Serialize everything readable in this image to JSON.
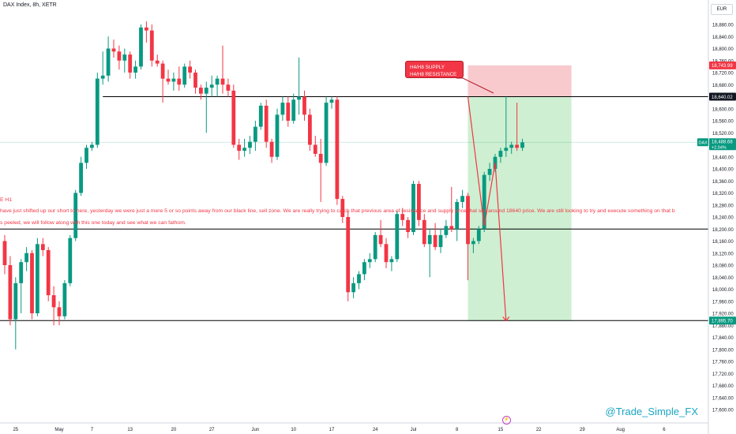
{
  "header": {
    "symbol": "DAX Index, 8h, XETR",
    "currency": "EUR"
  },
  "annotations": {
    "callout_line1": "H4/H8 SUPPLY",
    "callout_line2": "H4/H8 RESISTANCE",
    "note_timeframe": "E H1",
    "note_line1": "have just shifted up our short to here, yesterday we were just a mere 5 or so points away from our black line, sell zone. We are really trying to catch that previous area of resistance and supply price that sits around 18640 price. We are still looking to try and execute something on that b",
    "note_line2": "s peeled, we will follow along with this one today and see what we can fathom.",
    "watermark": "@Trade_Simple_FX"
  },
  "colors": {
    "up": "#089981",
    "down": "#f23645",
    "level_line": "#000000",
    "stop_zone": "#f7c1c6",
    "target_zone": "#c6ecc9",
    "projection": "#f23645",
    "current_price_line": "#089981"
  },
  "chart_data": {
    "type": "candlestick",
    "title": "DAX Index, 8h, XETR",
    "y_axis": {
      "min": 17560,
      "max": 18900,
      "tick_labels": [
        "18,880.00",
        "18,840.00",
        "18,800.00",
        "18,760.00",
        "18,720.00",
        "18,680.00",
        "18,640.00",
        "18,600.00",
        "18,560.00",
        "18,520.00",
        "18,480.00",
        "18,440.00",
        "18,400.00",
        "18,360.00",
        "18,320.00",
        "18,280.00",
        "18,240.00",
        "18,200.00",
        "18,160.00",
        "18,120.00",
        "18,080.00",
        "18,040.00",
        "18,000.00",
        "17,960.00",
        "17,920.00",
        "17,880.00",
        "17,840.00",
        "17,800.00",
        "17,760.00",
        "17,720.00",
        "17,680.00",
        "17,640.00",
        "17,600.00"
      ],
      "tick_values": [
        18880,
        18840,
        18800,
        18760,
        18720,
        18680,
        18640,
        18600,
        18560,
        18520,
        18480,
        18440,
        18400,
        18360,
        18320,
        18280,
        18240,
        18200,
        18160,
        18120,
        18080,
        18040,
        18000,
        17960,
        17920,
        17880,
        17840,
        17800,
        17760,
        17720,
        17680,
        17640,
        17600
      ]
    },
    "x_axis": {
      "tick_labels": [
        "25",
        "May",
        "7",
        "13",
        "20",
        "27",
        "Jun",
        "10",
        "17",
        "24",
        "Jul",
        "8",
        "15",
        "22",
        "29",
        "Aug",
        "6"
      ],
      "tick_bar_index": [
        2,
        10,
        16,
        23,
        31,
        38,
        46,
        53,
        60,
        68,
        75,
        83,
        91,
        98,
        106,
        113,
        121
      ]
    },
    "price_labels": {
      "stop": "18,743.99",
      "entry": "18,640.02",
      "current_symbol": "DAX",
      "current_price": "18,488.68",
      "current_change": "+2.04%",
      "target": "17,895.70"
    },
    "levels": {
      "entry": 18640.02,
      "stop": 18743.99,
      "target": 17895.7,
      "mid_support": 18200,
      "current": 18488.68
    },
    "position": {
      "start_bar": 85,
      "end_bar": 104
    },
    "projection_path": [
      {
        "bar": 85,
        "price": 18640
      },
      {
        "bar": 88,
        "price": 18210
      },
      {
        "bar": 90,
        "price": 18420
      },
      {
        "bar": 92,
        "price": 17895
      }
    ],
    "candles": [
      {
        "o": 18160,
        "h": 18180,
        "l": 18050,
        "c": 18080
      },
      {
        "o": 18080,
        "h": 18110,
        "l": 17880,
        "c": 17900
      },
      {
        "o": 17900,
        "h": 18040,
        "l": 17800,
        "c": 18020
      },
      {
        "o": 18020,
        "h": 18100,
        "l": 17920,
        "c": 18090
      },
      {
        "o": 18090,
        "h": 18140,
        "l": 18060,
        "c": 18120
      },
      {
        "o": 18120,
        "h": 18130,
        "l": 17900,
        "c": 17920
      },
      {
        "o": 17920,
        "h": 18170,
        "l": 17910,
        "c": 18150
      },
      {
        "o": 18150,
        "h": 18170,
        "l": 18110,
        "c": 18130
      },
      {
        "o": 18130,
        "h": 18140,
        "l": 17960,
        "c": 17980
      },
      {
        "o": 17980,
        "h": 18010,
        "l": 17880,
        "c": 17940
      },
      {
        "o": 17940,
        "h": 17960,
        "l": 17880,
        "c": 17910
      },
      {
        "o": 17910,
        "h": 18030,
        "l": 17900,
        "c": 18020
      },
      {
        "o": 18020,
        "h": 18180,
        "l": 18010,
        "c": 18170
      },
      {
        "o": 18170,
        "h": 18330,
        "l": 18160,
        "c": 18320
      },
      {
        "o": 18320,
        "h": 18440,
        "l": 18310,
        "c": 18420
      },
      {
        "o": 18420,
        "h": 18480,
        "l": 18400,
        "c": 18470
      },
      {
        "o": 18470,
        "h": 18490,
        "l": 18460,
        "c": 18480
      },
      {
        "o": 18480,
        "h": 18720,
        "l": 18470,
        "c": 18700
      },
      {
        "o": 18700,
        "h": 18790,
        "l": 18680,
        "c": 18710
      },
      {
        "o": 18710,
        "h": 18840,
        "l": 18690,
        "c": 18800
      },
      {
        "o": 18800,
        "h": 18830,
        "l": 18770,
        "c": 18790
      },
      {
        "o": 18790,
        "h": 18810,
        "l": 18730,
        "c": 18760
      },
      {
        "o": 18760,
        "h": 18800,
        "l": 18720,
        "c": 18780
      },
      {
        "o": 18780,
        "h": 18790,
        "l": 18700,
        "c": 18720
      },
      {
        "o": 18720,
        "h": 18760,
        "l": 18700,
        "c": 18740
      },
      {
        "o": 18740,
        "h": 18880,
        "l": 18730,
        "c": 18870
      },
      {
        "o": 18870,
        "h": 18890,
        "l": 18820,
        "c": 18860
      },
      {
        "o": 18860,
        "h": 18880,
        "l": 18740,
        "c": 18760
      },
      {
        "o": 18760,
        "h": 18780,
        "l": 18740,
        "c": 18750
      },
      {
        "o": 18750,
        "h": 18760,
        "l": 18620,
        "c": 18700
      },
      {
        "o": 18700,
        "h": 18730,
        "l": 18680,
        "c": 18690
      },
      {
        "o": 18690,
        "h": 18720,
        "l": 18660,
        "c": 18700
      },
      {
        "o": 18700,
        "h": 18740,
        "l": 18660,
        "c": 18680
      },
      {
        "o": 18680,
        "h": 18750,
        "l": 18670,
        "c": 18740
      },
      {
        "o": 18740,
        "h": 18760,
        "l": 18700,
        "c": 18720
      },
      {
        "o": 18720,
        "h": 18730,
        "l": 18650,
        "c": 18670
      },
      {
        "o": 18670,
        "h": 18680,
        "l": 18630,
        "c": 18650
      },
      {
        "o": 18650,
        "h": 18690,
        "l": 18520,
        "c": 18670
      },
      {
        "o": 18670,
        "h": 18710,
        "l": 18640,
        "c": 18680
      },
      {
        "o": 18680,
        "h": 18710,
        "l": 18640,
        "c": 18700
      },
      {
        "o": 18700,
        "h": 18810,
        "l": 18650,
        "c": 18680
      },
      {
        "o": 18680,
        "h": 18700,
        "l": 18640,
        "c": 18660
      },
      {
        "o": 18660,
        "h": 18680,
        "l": 18470,
        "c": 18480
      },
      {
        "o": 18480,
        "h": 18500,
        "l": 18430,
        "c": 18460
      },
      {
        "o": 18460,
        "h": 18500,
        "l": 18440,
        "c": 18470
      },
      {
        "o": 18470,
        "h": 18510,
        "l": 18450,
        "c": 18490
      },
      {
        "o": 18490,
        "h": 18560,
        "l": 18460,
        "c": 18540
      },
      {
        "o": 18540,
        "h": 18620,
        "l": 18530,
        "c": 18610
      },
      {
        "o": 18610,
        "h": 18630,
        "l": 18470,
        "c": 18490
      },
      {
        "o": 18490,
        "h": 18500,
        "l": 18420,
        "c": 18440
      },
      {
        "o": 18440,
        "h": 18600,
        "l": 18430,
        "c": 18580
      },
      {
        "o": 18580,
        "h": 18640,
        "l": 18560,
        "c": 18620
      },
      {
        "o": 18620,
        "h": 18640,
        "l": 18540,
        "c": 18560
      },
      {
        "o": 18560,
        "h": 18650,
        "l": 18550,
        "c": 18630
      },
      {
        "o": 18630,
        "h": 18770,
        "l": 18580,
        "c": 18640
      },
      {
        "o": 18640,
        "h": 18660,
        "l": 18560,
        "c": 18580
      },
      {
        "o": 18580,
        "h": 18600,
        "l": 18460,
        "c": 18480
      },
      {
        "o": 18480,
        "h": 18510,
        "l": 18440,
        "c": 18450
      },
      {
        "o": 18450,
        "h": 18500,
        "l": 18290,
        "c": 18420
      },
      {
        "o": 18420,
        "h": 18640,
        "l": 18410,
        "c": 18620
      },
      {
        "o": 18620,
        "h": 18640,
        "l": 18600,
        "c": 18630
      },
      {
        "o": 18630,
        "h": 18640,
        "l": 18280,
        "c": 18300
      },
      {
        "o": 18300,
        "h": 18310,
        "l": 18220,
        "c": 18240
      },
      {
        "o": 18240,
        "h": 18260,
        "l": 17960,
        "c": 17990
      },
      {
        "o": 17990,
        "h": 18040,
        "l": 17970,
        "c": 18020
      },
      {
        "o": 18020,
        "h": 18060,
        "l": 18000,
        "c": 18050
      },
      {
        "o": 18050,
        "h": 18100,
        "l": 18030,
        "c": 18090
      },
      {
        "o": 18090,
        "h": 18120,
        "l": 18070,
        "c": 18100
      },
      {
        "o": 18100,
        "h": 18190,
        "l": 18090,
        "c": 18180
      },
      {
        "o": 18180,
        "h": 18230,
        "l": 18140,
        "c": 18150
      },
      {
        "o": 18150,
        "h": 18170,
        "l": 18070,
        "c": 18090
      },
      {
        "o": 18090,
        "h": 18110,
        "l": 18060,
        "c": 18100
      },
      {
        "o": 18100,
        "h": 18260,
        "l": 18090,
        "c": 18250
      },
      {
        "o": 18250,
        "h": 18270,
        "l": 18210,
        "c": 18230
      },
      {
        "o": 18230,
        "h": 18240,
        "l": 18170,
        "c": 18190
      },
      {
        "o": 18190,
        "h": 18360,
        "l": 18180,
        "c": 18350
      },
      {
        "o": 18350,
        "h": 18360,
        "l": 18210,
        "c": 18230
      },
      {
        "o": 18230,
        "h": 18250,
        "l": 18140,
        "c": 18150
      },
      {
        "o": 18150,
        "h": 18200,
        "l": 18040,
        "c": 18180
      },
      {
        "o": 18180,
        "h": 18220,
        "l": 18130,
        "c": 18140
      },
      {
        "o": 18140,
        "h": 18200,
        "l": 18120,
        "c": 18180
      },
      {
        "o": 18180,
        "h": 18230,
        "l": 18170,
        "c": 18210
      },
      {
        "o": 18210,
        "h": 18340,
        "l": 18190,
        "c": 18200
      },
      {
        "o": 18200,
        "h": 18300,
        "l": 18160,
        "c": 18290
      },
      {
        "o": 18290,
        "h": 18330,
        "l": 18270,
        "c": 18310
      },
      {
        "o": 18310,
        "h": 18320,
        "l": 18030,
        "c": 18150
      },
      {
        "o": 18150,
        "h": 18170,
        "l": 18120,
        "c": 18160
      },
      {
        "o": 18160,
        "h": 18210,
        "l": 18150,
        "c": 18200
      },
      {
        "o": 18200,
        "h": 18390,
        "l": 18190,
        "c": 18380
      },
      {
        "o": 18380,
        "h": 18420,
        "l": 18360,
        "c": 18400
      },
      {
        "o": 18400,
        "h": 18450,
        "l": 18390,
        "c": 18440
      },
      {
        "o": 18440,
        "h": 18470,
        "l": 18420,
        "c": 18460
      },
      {
        "o": 18460,
        "h": 18640,
        "l": 18440,
        "c": 18470
      },
      {
        "o": 18470,
        "h": 18490,
        "l": 18450,
        "c": 18480
      },
      {
        "o": 18480,
        "h": 18620,
        "l": 18460,
        "c": 18470
      },
      {
        "o": 18470,
        "h": 18500,
        "l": 18460,
        "c": 18488
      }
    ]
  }
}
